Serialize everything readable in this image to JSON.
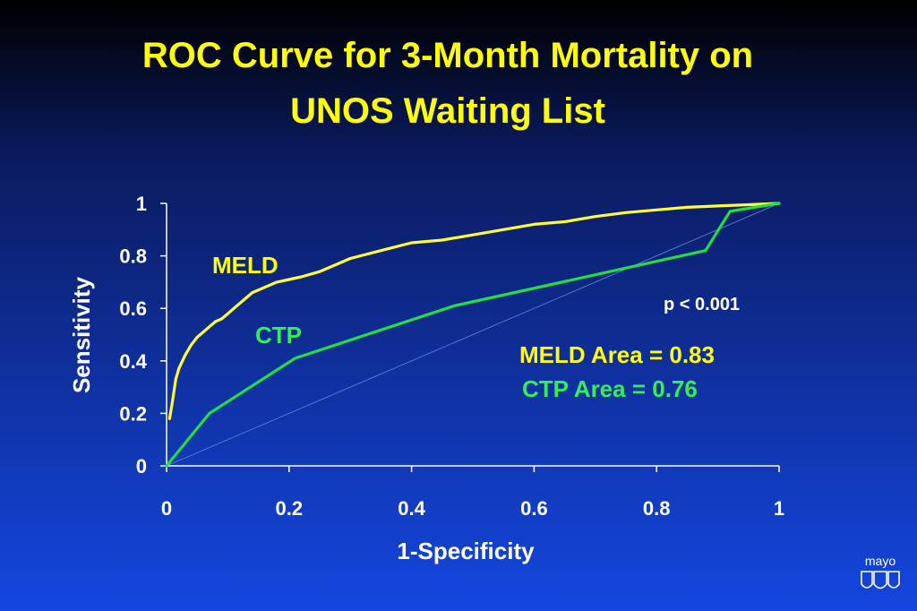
{
  "slide": {
    "title_line1": "ROC Curve for 3-Month Mortality on",
    "title_line2": "UNOS Waiting List",
    "p_value_label": "p < 0.001",
    "meld_curve_label": "MELD",
    "ctp_curve_label": "CTP",
    "meld_area_label": "MELD Area = 0.83",
    "ctp_area_label": "CTP Area = 0.76",
    "logo_text": "mayo"
  },
  "chart_data": {
    "type": "line",
    "title": "ROC Curve for 3-Month Mortality on UNOS Waiting List",
    "xlabel": "1-Specificity",
    "ylabel": "Sensitivity",
    "xlim": [
      0,
      1
    ],
    "ylim": [
      0,
      1
    ],
    "x_ticks": [
      "0",
      "0.2",
      "0.4",
      "0.6",
      "0.8",
      "1"
    ],
    "y_ticks": [
      "0",
      "0.2",
      "0.4",
      "0.6",
      "0.8",
      "1"
    ],
    "grid": false,
    "colors": {
      "meld": "#ffff33",
      "ctp": "#22dd44",
      "diagonal": "#5577cc",
      "axis": "#ffffff"
    },
    "series": [
      {
        "name": "MELD",
        "x": [
          0.005,
          0.01,
          0.015,
          0.02,
          0.03,
          0.04,
          0.05,
          0.06,
          0.07,
          0.08,
          0.09,
          0.1,
          0.11,
          0.12,
          0.13,
          0.14,
          0.16,
          0.18,
          0.2,
          0.22,
          0.25,
          0.28,
          0.3,
          0.35,
          0.4,
          0.45,
          0.5,
          0.55,
          0.6,
          0.65,
          0.7,
          0.75,
          0.8,
          0.85,
          0.9,
          0.95,
          1.0
        ],
        "y": [
          0.18,
          0.25,
          0.33,
          0.37,
          0.42,
          0.46,
          0.49,
          0.51,
          0.53,
          0.55,
          0.56,
          0.58,
          0.6,
          0.62,
          0.64,
          0.66,
          0.68,
          0.7,
          0.71,
          0.72,
          0.74,
          0.77,
          0.79,
          0.82,
          0.85,
          0.86,
          0.88,
          0.9,
          0.92,
          0.93,
          0.95,
          0.965,
          0.975,
          0.985,
          0.99,
          0.995,
          1.0
        ]
      },
      {
        "name": "CTP",
        "x": [
          0,
          0.07,
          0.21,
          0.47,
          0.88,
          0.92,
          1.0
        ],
        "y": [
          0,
          0.2,
          0.41,
          0.61,
          0.82,
          0.97,
          1.0
        ]
      }
    ]
  }
}
